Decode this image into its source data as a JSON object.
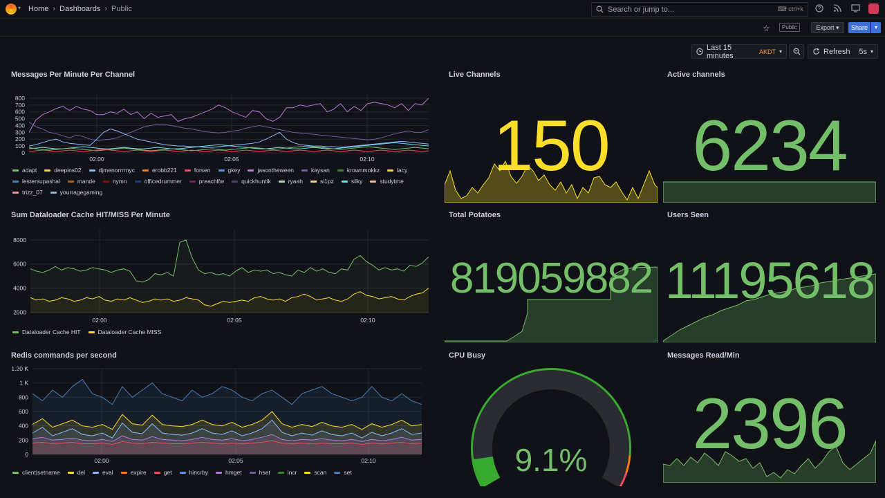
{
  "header": {
    "breadcrumbs": [
      "Home",
      "Dashboards",
      "Public"
    ],
    "search_placeholder": "Search or jump to...",
    "search_shortcut": "ctrl+k"
  },
  "toolbar": {
    "public_badge": "Public",
    "export_label": "Export",
    "share_label": "Share",
    "time_range": "Last 15 minutes",
    "timezone": "AKDT",
    "refresh_label": "Refresh",
    "refresh_interval": "5s"
  },
  "colors": {
    "green": "#73bf69",
    "yellow": "#fade2a",
    "stat_yellow": "#fade2a",
    "background": "#111217",
    "panel": "#181b1f"
  },
  "icons": [
    "grafana-logo",
    "search-icon",
    "keyboard-icon",
    "help-icon",
    "news-icon",
    "kiosk-icon",
    "star-icon",
    "clock-icon",
    "zoom-out-icon",
    "refresh-icon"
  ],
  "panels": {
    "messages": {
      "title": "Messages Per Minute Per Channel",
      "legend": [
        {
          "name": "adapt",
          "color": "#73bf69"
        },
        {
          "name": "deepins02",
          "color": "#fade2a"
        },
        {
          "name": "djmenorrrrnyc",
          "color": "#8ab8ff"
        },
        {
          "name": "erobb221",
          "color": "#ff780a"
        },
        {
          "name": "forsen",
          "color": "#f2495c"
        },
        {
          "name": "gkey",
          "color": "#5794f2"
        },
        {
          "name": "jasontheween",
          "color": "#b877d9"
        },
        {
          "name": "kaysan",
          "color": "#705da0"
        },
        {
          "name": "krownmokkz",
          "color": "#37872d"
        },
        {
          "name": "lacy",
          "color": "#fade2a"
        },
        {
          "name": "lestersupashal",
          "color": "#447ebc"
        },
        {
          "name": "mande",
          "color": "#c15c17"
        },
        {
          "name": "nymn",
          "color": "#890f02"
        },
        {
          "name": "officedrummer",
          "color": "#0a437c"
        },
        {
          "name": "preachlfw",
          "color": "#6d1f62"
        },
        {
          "name": "quickhuntik",
          "color": "#584477"
        },
        {
          "name": "ryaah",
          "color": "#b7dbab"
        },
        {
          "name": "si1pz",
          "color": "#f4d598"
        },
        {
          "name": "silky",
          "color": "#70dbed"
        },
        {
          "name": "studytme",
          "color": "#f9ba8f"
        },
        {
          "name": "trizz_07",
          "color": "#f29191"
        },
        {
          "name": "yourragegaming",
          "color": "#82b5d8"
        }
      ]
    },
    "cache": {
      "title": "Sum Dataloader Cache HIT/MISS Per Minute",
      "legend": [
        {
          "name": "Dataloader Cache HIT",
          "color": "#73bf69"
        },
        {
          "name": "Dataloader Cache MISS",
          "color": "#fade2a"
        }
      ]
    },
    "redis": {
      "title": "Redis commands per second",
      "legend": [
        {
          "name": "client|setname",
          "color": "#73bf69"
        },
        {
          "name": "del",
          "color": "#fade2a"
        },
        {
          "name": "eval",
          "color": "#8ab8ff"
        },
        {
          "name": "expire",
          "color": "#ff780a"
        },
        {
          "name": "get",
          "color": "#f2495c"
        },
        {
          "name": "hincrby",
          "color": "#5794f2"
        },
        {
          "name": "hmget",
          "color": "#b877d9"
        },
        {
          "name": "hset",
          "color": "#705da0"
        },
        {
          "name": "incr",
          "color": "#37872d"
        },
        {
          "name": "scan",
          "color": "#fade2a"
        },
        {
          "name": "set",
          "color": "#447ebc"
        }
      ]
    },
    "live_channels": {
      "title": "Live Channels",
      "value": "150"
    },
    "active_channels": {
      "title": "Active channels",
      "value": "6234"
    },
    "total_potatoes": {
      "title": "Total Potatoes",
      "value": "819059882"
    },
    "users_seen": {
      "title": "Users Seen",
      "value": "11195618"
    },
    "cpu_busy": {
      "title": "CPU Busy",
      "value": "9.1%",
      "percent": 9.1
    },
    "messages_read": {
      "title": "Messages Read/Min",
      "value": "2396"
    }
  },
  "chart_data": [
    {
      "type": "line",
      "title": "Messages Per Minute Per Channel",
      "x_ticks": [
        "02:00",
        "02:05",
        "02:10"
      ],
      "y_ticks": [
        "0",
        "100",
        "200",
        "300",
        "400",
        "500",
        "600",
        "700",
        "800"
      ],
      "ylim": [
        0,
        850
      ],
      "series": [
        {
          "name": "jasontheween",
          "color": "#b877d9",
          "values": [
            300,
            480,
            560,
            600,
            650,
            680,
            620,
            680,
            640,
            620,
            560,
            560,
            600,
            580,
            640,
            560,
            600,
            500,
            580,
            520,
            540,
            560,
            460,
            500,
            520,
            560,
            600,
            640,
            700,
            660,
            600,
            560,
            520,
            620,
            600,
            500,
            460,
            520,
            660,
            660,
            700,
            680,
            700,
            720,
            600,
            640,
            720,
            600,
            680,
            620,
            720,
            740,
            720,
            700,
            660,
            720,
            620,
            720,
            700,
            800
          ]
        },
        {
          "name": "kaysan",
          "color": "#705da0",
          "values": [
            450,
            380,
            350,
            300,
            280,
            250,
            220,
            260,
            240,
            200,
            180,
            190,
            200,
            220,
            260,
            300,
            340,
            380,
            400,
            420,
            420,
            400,
            380,
            360,
            350,
            330,
            310,
            300,
            290,
            300,
            320,
            330,
            360,
            380,
            400,
            380,
            360,
            340,
            320,
            300,
            290,
            280,
            270,
            260,
            250,
            240,
            230,
            220,
            210,
            200,
            190,
            200,
            220,
            250,
            280,
            300,
            320,
            300,
            300,
            340
          ]
        },
        {
          "name": "djmenorrrrnyc",
          "color": "#8ab8ff",
          "values": [
            100,
            120,
            150,
            180,
            200,
            160,
            140,
            130,
            120,
            110,
            200,
            300,
            350,
            320,
            280,
            240,
            200,
            180,
            160,
            140,
            120,
            110,
            100,
            100,
            90,
            90,
            80,
            80,
            90,
            100,
            110,
            120,
            130,
            140,
            160,
            200,
            250,
            300,
            200,
            150,
            120,
            110,
            100,
            100,
            90,
            90,
            80,
            90,
            100,
            110,
            120,
            130,
            140,
            150,
            160,
            170,
            160,
            150,
            140,
            130
          ]
        },
        {
          "name": "silky",
          "color": "#70dbed",
          "values": [
            60,
            70,
            80,
            70,
            60,
            60,
            70,
            80,
            90,
            80,
            70,
            60,
            60,
            70,
            80,
            70,
            60,
            60,
            70,
            80,
            70,
            60,
            60,
            70,
            80,
            90,
            100,
            110,
            120,
            110,
            100,
            90,
            80,
            70,
            60,
            60,
            70,
            80,
            70,
            60,
            60,
            70,
            80,
            70,
            60,
            60,
            70,
            80,
            90,
            100,
            110,
            120,
            130,
            140,
            150,
            140,
            130,
            120,
            110,
            100
          ]
        },
        {
          "name": "adapt",
          "color": "#73bf69",
          "values": [
            80,
            60,
            50,
            40,
            50,
            60,
            70,
            60,
            50,
            40,
            30,
            40,
            50,
            60,
            70,
            60,
            50,
            40,
            30,
            40,
            50,
            60,
            50,
            40,
            30,
            40,
            50,
            60,
            50,
            40,
            50,
            60,
            70,
            80,
            70,
            60,
            50,
            60,
            70,
            80,
            90,
            100,
            90,
            80,
            70,
            60,
            50,
            60,
            70,
            80,
            90,
            80,
            70,
            60,
            50,
            60,
            70,
            80,
            70,
            60
          ]
        },
        {
          "name": "forsen",
          "color": "#f2495c",
          "values": [
            20,
            30,
            40,
            30,
            20,
            30,
            40,
            30,
            20,
            30,
            40,
            50,
            40,
            30,
            20,
            30,
            40,
            30,
            20,
            30,
            40,
            30,
            20,
            30,
            40,
            30,
            20,
            30,
            40,
            30,
            20,
            30,
            40,
            30,
            20,
            30,
            40,
            30,
            20,
            30,
            40,
            30,
            20,
            30,
            40,
            30,
            20,
            30,
            40,
            30,
            20,
            30,
            40,
            30,
            20,
            30,
            40,
            30,
            20,
            30
          ]
        }
      ]
    },
    {
      "type": "line",
      "title": "Sum Dataloader Cache HIT/MISS Per Minute",
      "x_ticks": [
        "02:00",
        "02:05",
        "02:10"
      ],
      "y_ticks": [
        "2000",
        "4000",
        "6000",
        "8000"
      ],
      "ylim": [
        1900,
        8800
      ],
      "series": [
        {
          "name": "Dataloader Cache HIT",
          "color": "#73bf69",
          "values": [
            5600,
            5400,
            5300,
            5500,
            5800,
            5500,
            5700,
            5600,
            5400,
            5500,
            5700,
            5600,
            5500,
            5300,
            5500,
            5600,
            5400,
            4600,
            4500,
            4700,
            5200,
            5100,
            5300,
            5000,
            7800,
            8000,
            6500,
            5500,
            5200,
            5300,
            5100,
            5200,
            5000,
            5400,
            5700,
            5300,
            5500,
            5400,
            5500,
            5200,
            5300,
            5100,
            5000,
            5500,
            5300,
            5700,
            5400,
            5600,
            5300,
            5200,
            5600,
            5500,
            6400,
            6700,
            6200,
            5900,
            5500,
            5700,
            5500,
            5600,
            5400,
            5900,
            5800,
            6100,
            6600
          ]
        },
        {
          "name": "Dataloader Cache MISS",
          "color": "#fade2a",
          "values": [
            3200,
            3000,
            3100,
            2900,
            3000,
            3200,
            3100,
            2900,
            3000,
            3200,
            3100,
            3300,
            3000,
            2900,
            3100,
            3000,
            3200,
            3000,
            2800,
            2900,
            3100,
            3000,
            3100,
            2900,
            3000,
            3200,
            3100,
            3000,
            2600,
            2500,
            2700,
            2900,
            2800,
            2900,
            3000,
            2900,
            3200,
            3300,
            3100,
            3000,
            3100,
            2900,
            3200,
            3300,
            3500,
            3300,
            3000,
            3100,
            3200,
            3000,
            2900,
            3100,
            3500,
            3700,
            3400,
            3300,
            3100,
            3200,
            3300,
            3100,
            3000,
            3300,
            3500,
            3600,
            4000
          ]
        }
      ]
    },
    {
      "type": "area",
      "title": "Redis commands per second",
      "x_ticks": [
        "02:00",
        "02:05",
        "02:10"
      ],
      "y_ticks": [
        "0",
        "200",
        "400",
        "600",
        "800",
        "1 K",
        "1.20 K"
      ],
      "ylim": [
        0,
        1200
      ],
      "series": [
        {
          "name": "set",
          "color": "#447ebc",
          "values": [
            850,
            750,
            900,
            800,
            950,
            1050,
            850,
            800,
            700,
            950,
            800,
            900,
            1000,
            850,
            800,
            750,
            900,
            800,
            850,
            950,
            900,
            800,
            750,
            850,
            900,
            800,
            700,
            850,
            900,
            950,
            850,
            800,
            750,
            800,
            950,
            800,
            750,
            850,
            750,
            700
          ]
        },
        {
          "name": "del",
          "color": "#fade2a",
          "values": [
            420,
            500,
            380,
            430,
            480,
            400,
            380,
            420,
            350,
            560,
            430,
            410,
            550,
            420,
            400,
            390,
            420,
            480,
            420,
            400,
            450,
            380,
            420,
            480,
            600,
            430,
            380,
            420,
            390,
            450,
            400,
            380,
            420,
            350,
            430,
            380,
            420,
            480,
            400,
            420
          ]
        },
        {
          "name": "eval",
          "color": "#8ab8ff",
          "values": [
            300,
            380,
            260,
            310,
            360,
            280,
            260,
            300,
            230,
            440,
            310,
            290,
            430,
            300,
            280,
            270,
            300,
            360,
            300,
            280,
            330,
            260,
            300,
            360,
            480,
            310,
            260,
            300,
            270,
            330,
            280,
            260,
            300,
            230,
            310,
            260,
            300,
            360,
            280,
            300
          ]
        },
        {
          "name": "hmget",
          "color": "#b877d9",
          "values": [
            220,
            240,
            200,
            210,
            230,
            200,
            190,
            210,
            180,
            260,
            210,
            200,
            250,
            210,
            200,
            190,
            210,
            240,
            210,
            200,
            220,
            190,
            210,
            240,
            280,
            210,
            190,
            210,
            200,
            220,
            200,
            190,
            210,
            180,
            210,
            190,
            210,
            240,
            200,
            210
          ]
        },
        {
          "name": "get",
          "color": "#f2495c",
          "values": [
            160,
            170,
            150,
            160,
            170,
            150,
            150,
            160,
            140,
            180,
            160,
            150,
            170,
            160,
            150,
            150,
            160,
            170,
            160,
            150,
            160,
            150,
            160,
            170,
            190,
            160,
            150,
            160,
            150,
            160,
            150,
            150,
            160,
            140,
            160,
            150,
            160,
            170,
            150,
            160
          ]
        }
      ]
    }
  ]
}
